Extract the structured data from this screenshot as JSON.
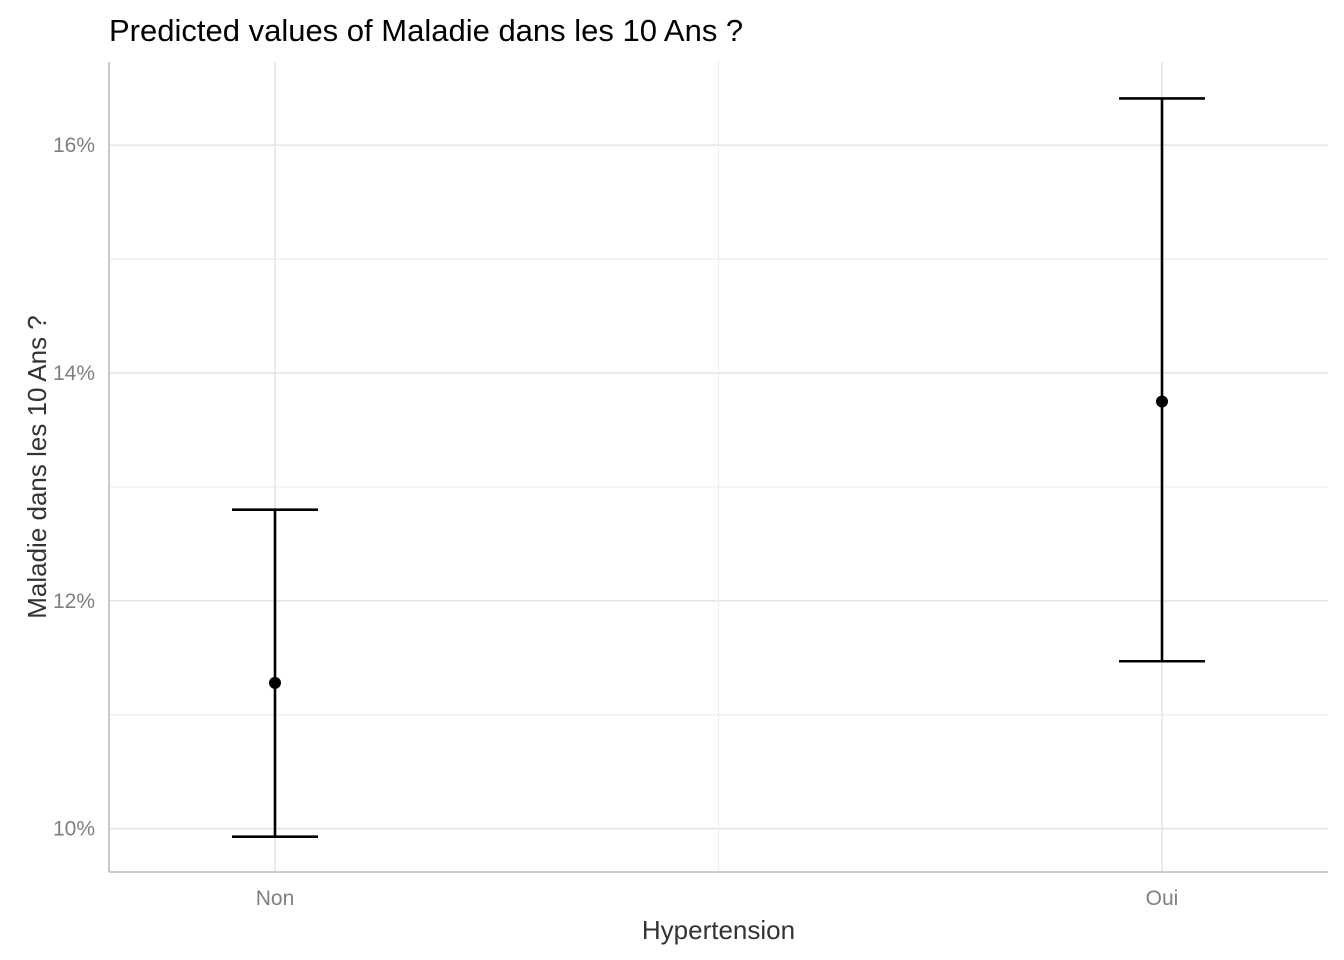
{
  "chart_data": {
    "type": "scatter",
    "title": "Predicted values of Maladie dans les 10 Ans ?",
    "xlabel": "Hypertension",
    "ylabel": "Maladie dans les 10 Ans ?",
    "categories": [
      "Non",
      "Oui"
    ],
    "values": [
      0.1128,
      0.1375
    ],
    "ci_low": [
      0.0993,
      0.1147
    ],
    "ci_high": [
      0.128,
      0.1641
    ],
    "ylim": [
      0.0962,
      0.1673
    ],
    "y_ticks": [
      0.1,
      0.12,
      0.14,
      0.16
    ],
    "y_tick_labels": [
      "10%",
      "12%",
      "14%",
      "16%"
    ],
    "y_minor_ticks": [
      0.11,
      0.13,
      0.15
    ],
    "grid": true,
    "legend": "none"
  },
  "colors": {
    "point": "#000000",
    "errorbar": "#000000",
    "grid": "#e6e6e6",
    "tick_label": "#7f7f7f",
    "axis_title": "#333333"
  }
}
